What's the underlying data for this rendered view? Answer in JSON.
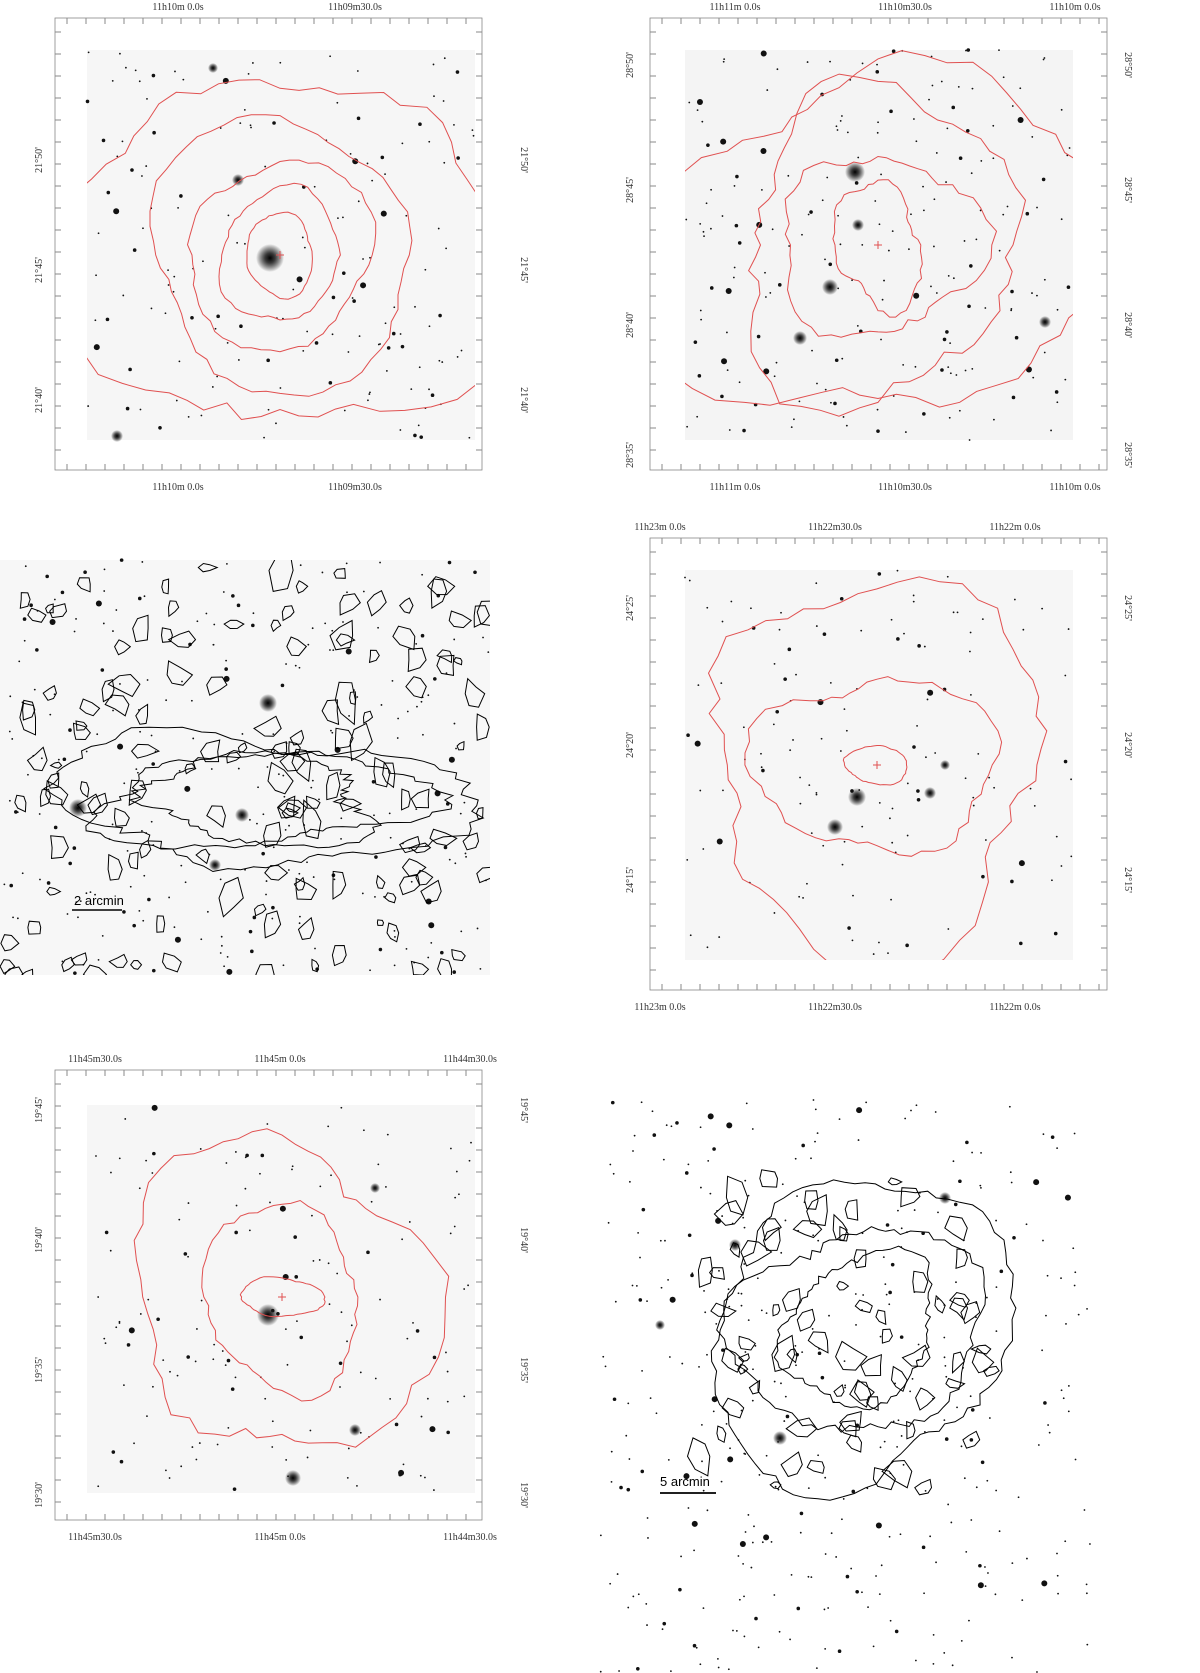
{
  "panels": [
    {
      "top_labels": [
        "11h10m 0.0s",
        "11h09m30.0s"
      ],
      "bottom_labels": [
        "11h10m 0.0s",
        "11h09m30.0s"
      ],
      "left_labels": [
        "21°50'",
        "21°45'",
        "21°40'"
      ],
      "right_labels": [
        "21°50'",
        "21°45'",
        "21°40'"
      ]
    },
    {
      "top_labels": [
        "11h11m 0.0s",
        "11h10m30.0s",
        "11h10m 0.0s"
      ],
      "bottom_labels": [
        "11h11m 0.0s",
        "11h10m30.0s",
        "11h10m 0.0s"
      ],
      "left_labels": [
        "28°50'",
        "28°45'",
        "28°40'",
        "28°35'"
      ],
      "right_labels": [
        "28°50'",
        "28°45'",
        "28°40'",
        "28°35'"
      ]
    },
    {
      "scale_bar": "2 arcmin"
    },
    {
      "top_labels": [
        "11h23m 0.0s",
        "11h22m30.0s",
        "11h22m 0.0s"
      ],
      "bottom_labels": [
        "11h23m 0.0s",
        "11h22m30.0s",
        "11h22m 0.0s"
      ],
      "left_labels": [
        "24°25'",
        "24°20'",
        "24°15'"
      ],
      "right_labels": [
        "24°25'",
        "24°20'",
        "24°15'"
      ]
    },
    {
      "top_labels": [
        "11h45m30.0s",
        "11h45m 0.0s",
        "11h44m30.0s"
      ],
      "bottom_labels": [
        "11h45m30.0s",
        "11h45m 0.0s",
        "11h44m30.0s"
      ],
      "left_labels": [
        "19°45'",
        "19°40'",
        "19°35'",
        "19°30'"
      ],
      "right_labels": [
        "19°45'",
        "19°40'",
        "19°35'",
        "19°30'"
      ]
    },
    {
      "scale_bar": "5 arcmin"
    }
  ]
}
